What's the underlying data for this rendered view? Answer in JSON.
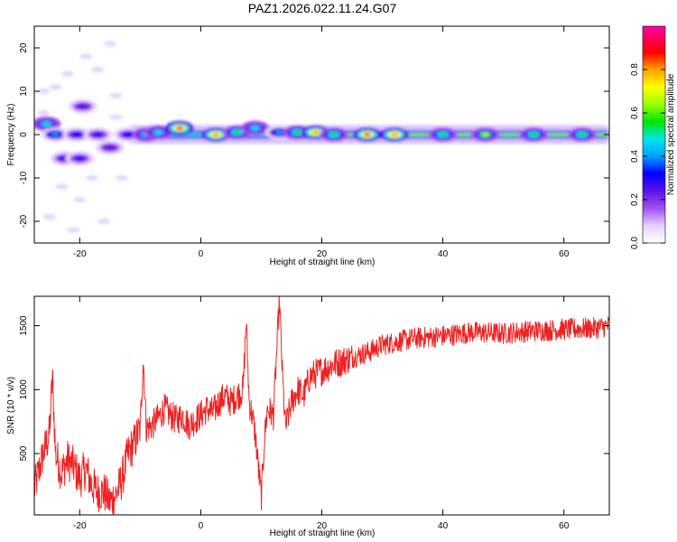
{
  "title": "PAZ1.2026.022.11.24.G07",
  "chart_data": [
    {
      "type": "heatmap",
      "name": "spectrogram",
      "xlabel": "Height of straight line (km)",
      "ylabel": "Frequency (Hz)",
      "xlim": [
        -27.5,
        67.5
      ],
      "ylim": [
        -25,
        25
      ],
      "xticks": [
        -20,
        0,
        20,
        40,
        60
      ],
      "yticks": [
        -20,
        -10,
        0,
        10,
        20
      ],
      "colorbar": {
        "label": "Normalized spectral amplitude",
        "range": [
          0,
          1
        ],
        "ticks": [
          0.0,
          0.2,
          0.4,
          0.6,
          0.8
        ],
        "tick_labels": [
          "0.0",
          "0.2",
          "0.4",
          "0.6",
          "0.8"
        ],
        "colormap": [
          "#ffffff",
          "#e6d2ff",
          "#a050f0",
          "#5a14e6",
          "#0000ff",
          "#00a0ff",
          "#00e6e6",
          "#00e600",
          "#9bff00",
          "#ffff00",
          "#ffa000",
          "#ff0000",
          "#ff00aa"
        ]
      },
      "features": [
        {
          "x": -25.5,
          "y": 2.5,
          "value": 0.5
        },
        {
          "x": -24,
          "y": 0,
          "value": 0.4
        },
        {
          "x": -22.5,
          "y": -5.5,
          "value": 0.35
        },
        {
          "x": -20,
          "y": -5.5,
          "value": 0.3
        },
        {
          "x": -19.5,
          "y": 6.5,
          "value": 0.25
        },
        {
          "x": -20.5,
          "y": 0,
          "value": 0.35
        },
        {
          "x": -17,
          "y": 0,
          "value": 0.3
        },
        {
          "x": -15,
          "y": -3,
          "value": 0.25
        },
        {
          "x": -12,
          "y": 0,
          "value": 0.35
        },
        {
          "x": -9,
          "y": 0,
          "value": 0.5
        },
        {
          "x": -7,
          "y": 0.5,
          "value": 0.5
        },
        {
          "x": -3.5,
          "y": 1.5,
          "value": 0.9
        },
        {
          "x": 2.5,
          "y": 0,
          "value": 0.85
        },
        {
          "x": 6,
          "y": 0.5,
          "value": 0.55
        },
        {
          "x": 9,
          "y": 1.5,
          "value": 0.5
        },
        {
          "x": 13,
          "y": 0.5,
          "value": 0.4
        },
        {
          "x": 16,
          "y": 0.5,
          "value": 0.55
        },
        {
          "x": 19,
          "y": 0.5,
          "value": 0.85
        },
        {
          "x": 22,
          "y": 0,
          "value": 0.55
        },
        {
          "x": 27.5,
          "y": 0,
          "value": 0.9
        },
        {
          "x": 32,
          "y": 0,
          "value": 0.85
        },
        {
          "x": 40,
          "y": 0,
          "value": 0.6
        },
        {
          "x": 47,
          "y": 0,
          "value": 0.65
        },
        {
          "x": 55,
          "y": 0,
          "value": 0.55
        },
        {
          "x": 63,
          "y": 0,
          "value": 0.55
        }
      ]
    },
    {
      "type": "line",
      "name": "snr",
      "xlabel": "Height of straight line (km)",
      "ylabel": "SNR (10 * v/v)",
      "xlim": [
        -27.5,
        67.5
      ],
      "ylim": [
        20,
        1730
      ],
      "xticks": [
        -20,
        0,
        20,
        40,
        60
      ],
      "yticks": [
        500,
        1000,
        1500
      ],
      "color": "#ee2222",
      "x": [
        -27.5,
        -26,
        -25,
        -24.5,
        -24,
        -23,
        -22,
        -21,
        -20,
        -19,
        -18,
        -17,
        -16,
        -15,
        -14,
        -13,
        -12,
        -11,
        -10,
        -9.5,
        -9,
        -8,
        -7,
        -6,
        -5,
        -4,
        -3,
        -2,
        -1,
        0,
        1,
        2,
        3,
        4,
        5,
        6,
        7,
        7.5,
        8,
        8.5,
        9,
        9.5,
        10,
        10.5,
        11,
        12,
        13,
        13.5,
        14,
        15,
        16,
        17,
        18,
        20,
        22,
        25,
        28,
        30,
        35,
        40,
        45,
        50,
        55,
        60,
        65,
        67.5
      ],
      "y": [
        220,
        500,
        650,
        1110,
        500,
        350,
        450,
        400,
        300,
        380,
        250,
        200,
        200,
        120,
        180,
        300,
        500,
        580,
        700,
        1250,
        700,
        720,
        780,
        850,
        800,
        760,
        800,
        720,
        760,
        800,
        850,
        820,
        900,
        950,
        900,
        950,
        1000,
        1550,
        900,
        800,
        650,
        400,
        150,
        600,
        850,
        800,
        1700,
        1100,
        700,
        900,
        1000,
        950,
        1100,
        1150,
        1200,
        1250,
        1300,
        1350,
        1400,
        1420,
        1450,
        1440,
        1460,
        1470,
        1480,
        1500
      ]
    }
  ]
}
